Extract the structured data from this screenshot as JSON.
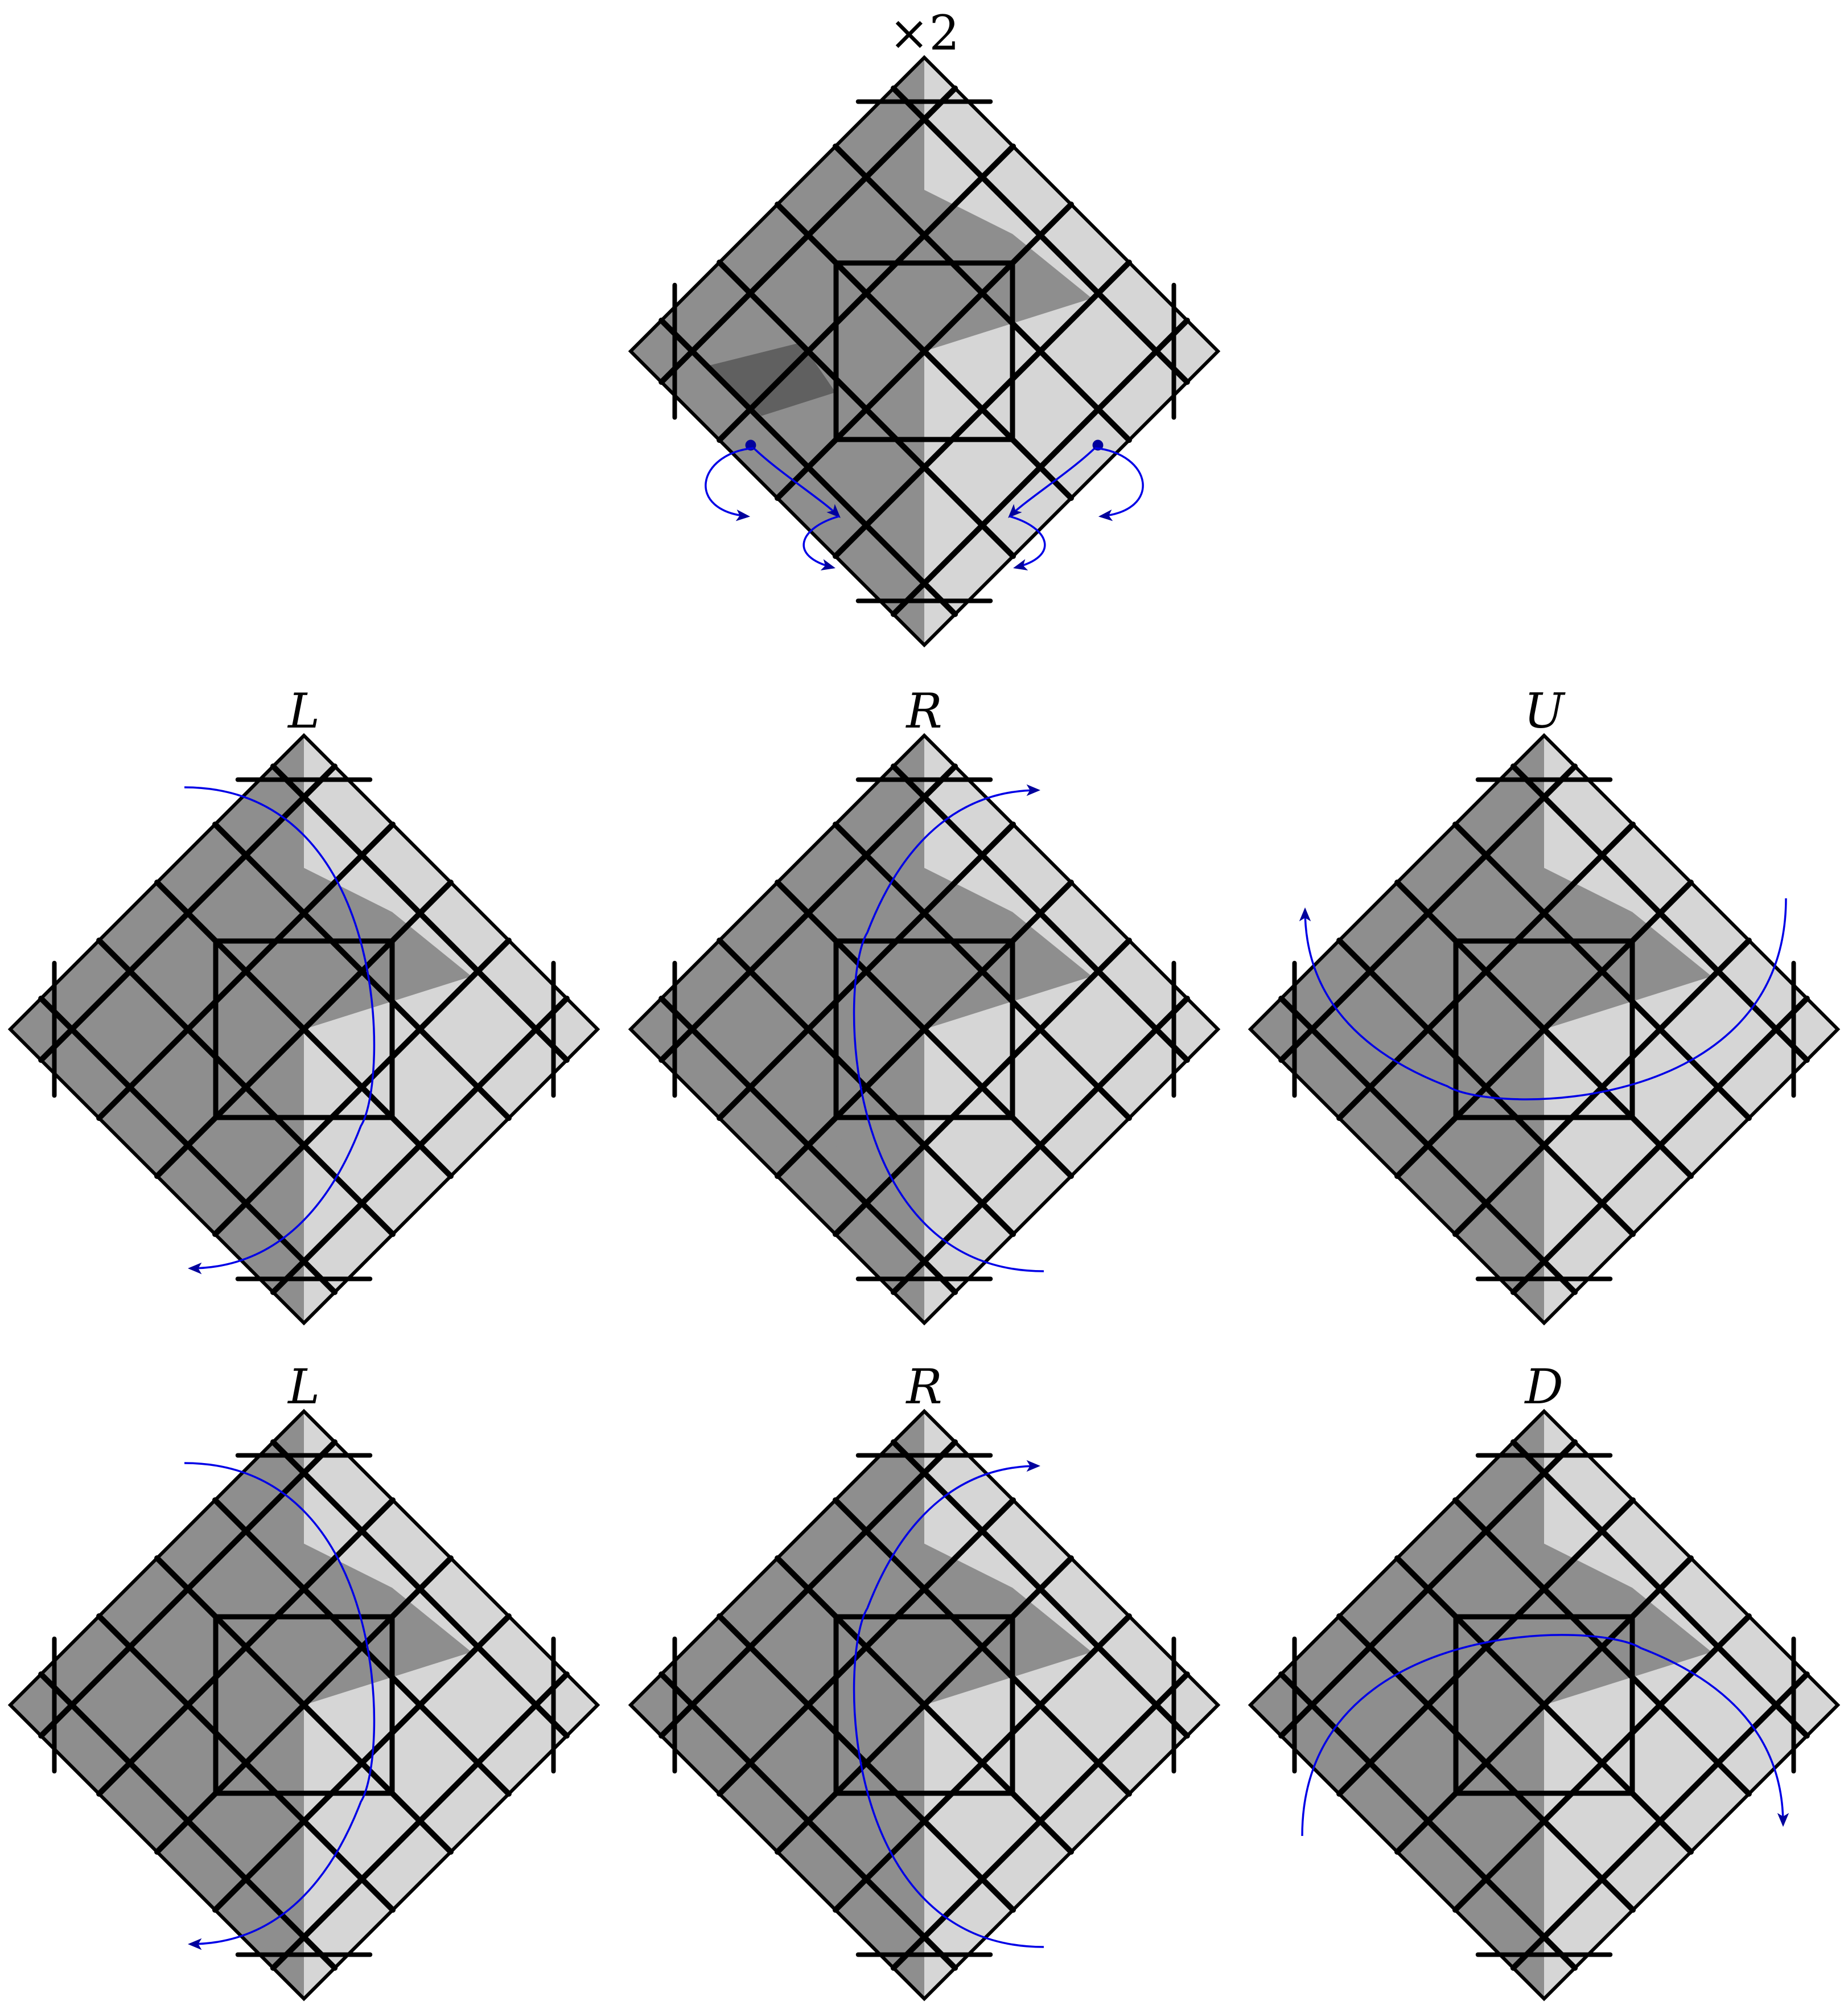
{
  "colors": {
    "dark": "#8e8e8e",
    "light": "#d6d6d6",
    "darker": "#606060",
    "edge": "#000000",
    "arrow": "#0000e6",
    "arrowhead": "#00009c"
  },
  "panels": [
    {
      "label": "×2",
      "italic": false,
      "arrow": "corner-twists",
      "darker_cells": [
        5
      ]
    },
    {
      "label": "L",
      "italic": true,
      "arrow": "left-column"
    },
    {
      "label": "R",
      "italic": true,
      "arrow": "right-column"
    },
    {
      "label": "U",
      "italic": true,
      "arrow": "upper-row"
    },
    {
      "label": "L",
      "italic": true,
      "arrow": "left-column"
    },
    {
      "label": "R",
      "italic": true,
      "arrow": "right-column"
    },
    {
      "label": "D",
      "italic": true,
      "arrow": "lower-row"
    }
  ]
}
